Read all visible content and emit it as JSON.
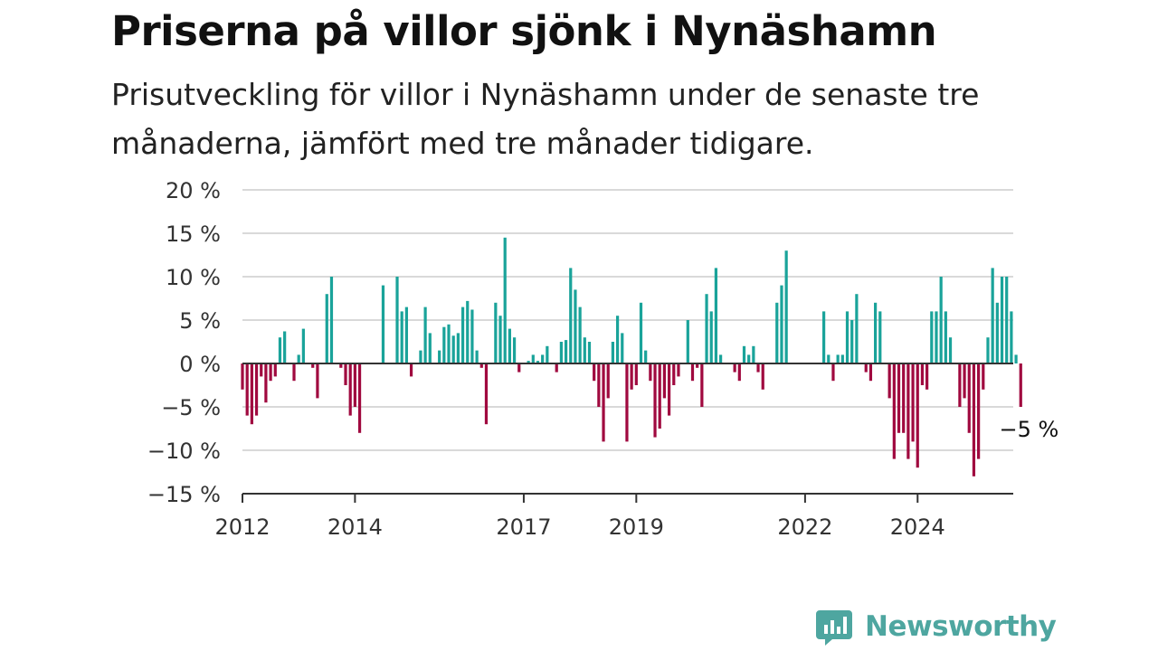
{
  "title": "Priserna på villor sjönk i Nynäshamn",
  "subtitle": "Prisutveckling för villor i Nynäshamn under de senaste tre månaderna, jämfört med tre månader tidigare.",
  "colors": {
    "positive": "#1aa39a",
    "negative": "#a0093f",
    "grid": "#d9d9d9",
    "axis": "#333333",
    "brand": "#4ea6a0"
  },
  "logo": {
    "text": "Newsworthy",
    "icon": "newsworthy-chart-icon"
  },
  "chart_data": {
    "type": "bar",
    "title": "Priserna på villor sjönk i Nynäshamn",
    "subtitle": "Prisutveckling för villor i Nynäshamn under de senaste tre månaderna, jämfört med tre månader tidigare.",
    "ylim": [
      -15,
      20
    ],
    "yticks": [
      -15,
      -10,
      -5,
      0,
      5,
      10,
      15,
      20
    ],
    "ytick_labels": [
      "−15 %",
      "−10 %",
      "−5 %",
      "0 %",
      "5 %",
      "10 %",
      "15 %",
      "20 %"
    ],
    "xticks": [
      2012,
      2014,
      2017,
      2019,
      2022,
      2024
    ],
    "xtick_labels": [
      "2012",
      "2014",
      "2017",
      "2019",
      "2022",
      "2024"
    ],
    "xlim": [
      2012.0,
      2025.7
    ],
    "grid": true,
    "legend": "none",
    "series": [
      {
        "start": 2012.0,
        "step": 0.08333,
        "values": [
          -3,
          -6,
          -7,
          -6,
          -1.5,
          -4.5,
          -2,
          -1.5,
          3,
          3.7,
          0,
          -2,
          1,
          4,
          0,
          -0.5,
          -4,
          0,
          8,
          10,
          0,
          -0.5,
          -2.5,
          -6,
          -5,
          -8,
          0,
          0,
          0,
          0,
          9,
          0,
          0,
          10,
          6,
          6.5,
          -1.5,
          0,
          1.5,
          6.5,
          3.5,
          0,
          1.5,
          4.2,
          4.5,
          3.2,
          3.5,
          6.5,
          7.2,
          6.2,
          1.5,
          -0.5,
          -7,
          0,
          7,
          5.5,
          14.5,
          4,
          3,
          -1,
          0,
          0.3,
          1,
          0.3,
          1,
          2,
          0,
          -1,
          2.5,
          2.7,
          11,
          8.5,
          6.5,
          3,
          2.5,
          -2,
          -5,
          -9,
          -4,
          2.5,
          5.5,
          3.5,
          -9,
          -3,
          -2.5,
          7,
          1.5,
          -2,
          -8.5,
          -7.5,
          -4,
          -6,
          -2.5,
          -1.5,
          0,
          5,
          -2,
          -0.5,
          -5,
          8,
          6,
          11,
          1,
          0,
          0,
          -1,
          -2,
          2,
          1,
          2,
          -1,
          -3,
          0,
          0,
          7,
          9,
          13,
          0,
          0,
          0,
          0,
          0,
          0,
          0,
          6,
          1,
          -2,
          1,
          1,
          6,
          5,
          8,
          0,
          -1,
          -2,
          7,
          6,
          0,
          -4,
          -11,
          -8,
          -8,
          -11,
          -9,
          -12,
          -2.5,
          -3,
          6,
          6,
          10,
          6,
          3,
          0,
          -5,
          -4,
          -8,
          -13,
          -11,
          -3,
          3,
          11,
          7,
          10,
          10,
          6,
          1,
          -5
        ]
      }
    ],
    "annotations": [
      {
        "text": "−5 %",
        "x": 2025.5,
        "y": -5
      }
    ]
  }
}
